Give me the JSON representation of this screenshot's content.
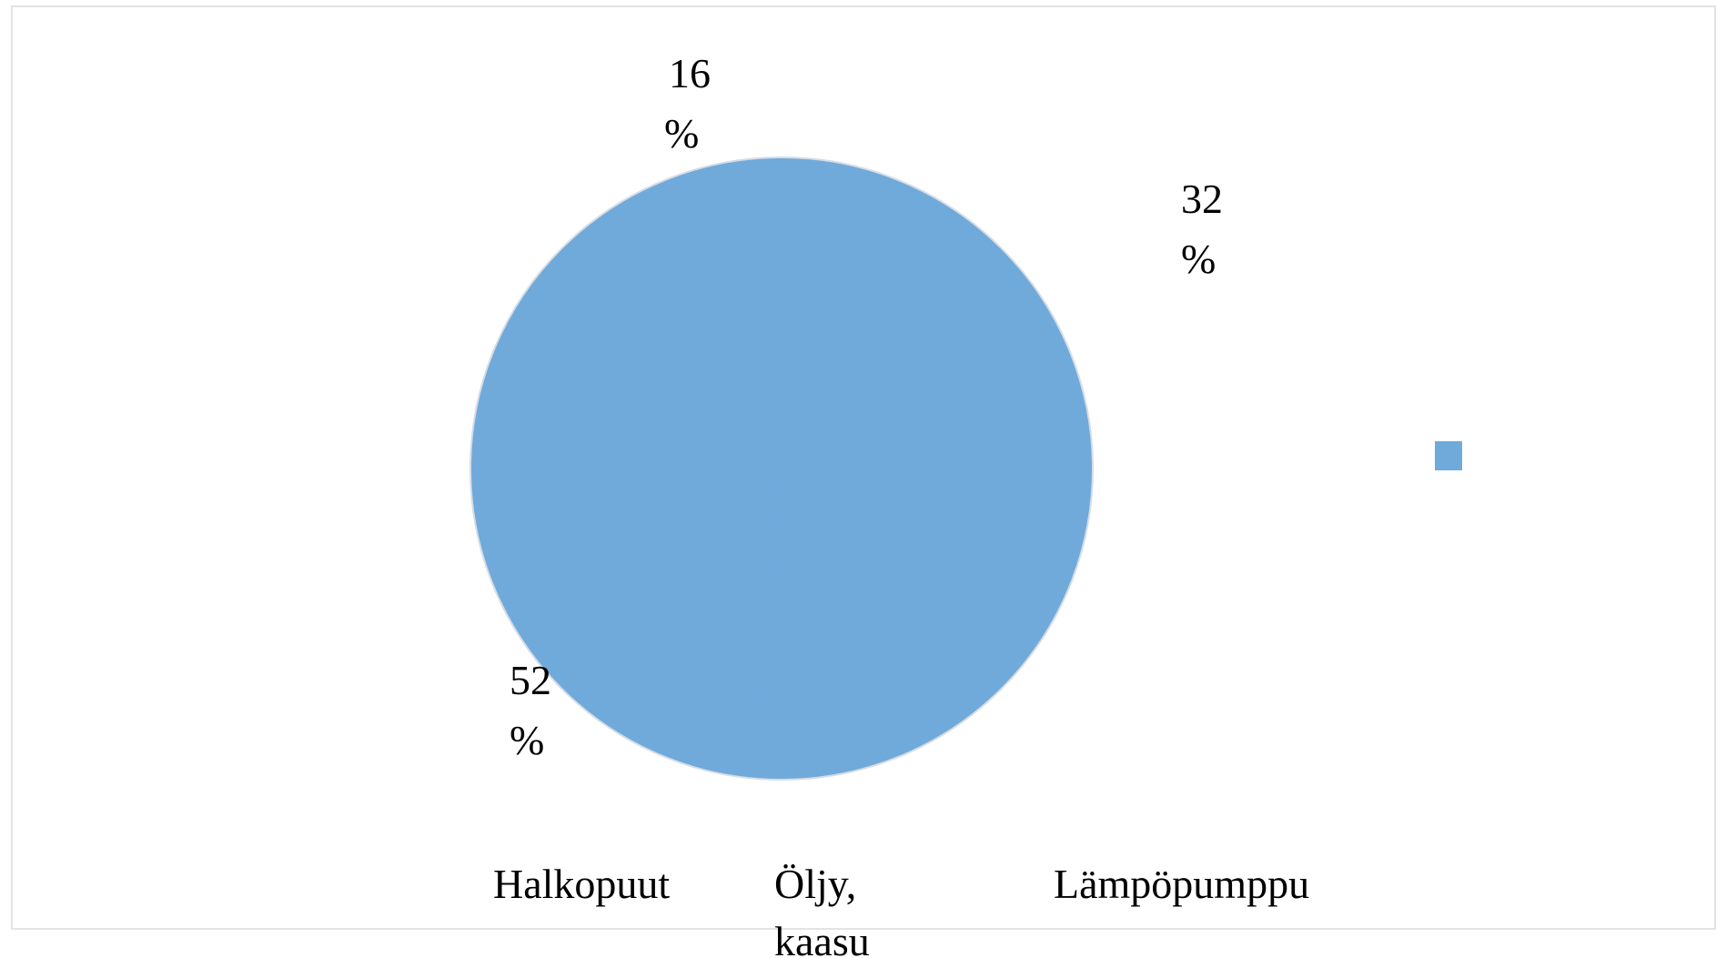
{
  "chart_data": {
    "type": "pie",
    "categories": [
      "Halkopuut",
      "Öljy, kaasu",
      "Lämpöpumppu"
    ],
    "values": [
      52,
      16,
      32
    ],
    "data_labels": [
      {
        "line1": "52",
        "line2": "%"
      },
      {
        "line1": "16",
        "line2": "%"
      },
      {
        "line1": "32",
        "line2": "%"
      }
    ],
    "category_labels": [
      {
        "line1": "Halkopuut",
        "line2": ""
      },
      {
        "line1": "Öljy,",
        "line2": "kaasu"
      },
      {
        "line1": "Lämpöpumppu",
        "line2": ""
      }
    ],
    "title": "",
    "legend_position": "right",
    "fill_color": "#6faadb",
    "edge_color": "#d6dce4"
  }
}
